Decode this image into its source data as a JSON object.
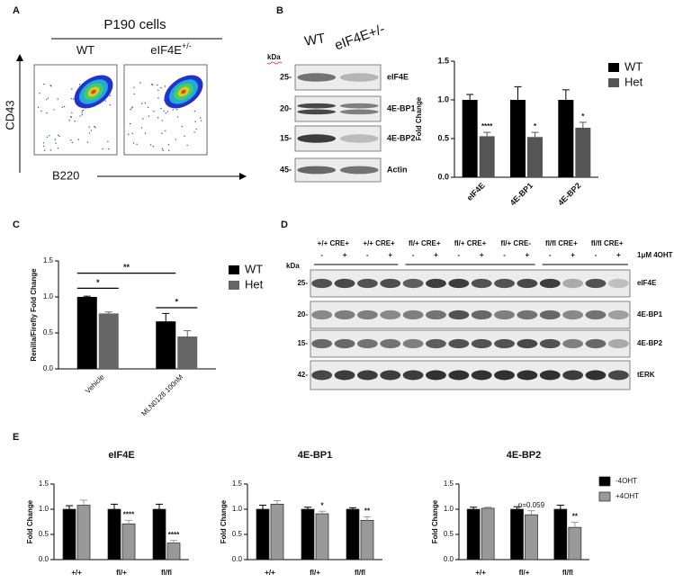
{
  "panel_labels": [
    "A",
    "B",
    "C",
    "D",
    "E"
  ],
  "flow": {
    "title": "P190 cells",
    "groups": [
      {
        "label": "WT"
      },
      {
        "label": "eIF4E",
        "sup": "+/-"
      }
    ],
    "y_axis_label": "CD43",
    "x_axis_label": "B220"
  },
  "blot_b": {
    "columns": [
      "WT",
      "eIF4E+/-"
    ],
    "kda": "kDa",
    "markers": [
      "25-",
      "20-",
      "15-",
      "45-"
    ],
    "bands": [
      "eIF4E",
      "4E-BP1",
      "4E-BP2",
      "Actin"
    ]
  },
  "blot_d": {
    "groups": [
      "+/+ CRE+",
      "+/+ CRE+",
      "fl/+ CRE+",
      "fl/+ CRE+",
      "fl/+ CRE-",
      "fl/fl CRE+",
      "fl/fl CRE+"
    ],
    "signs": [
      "-",
      "+",
      "-",
      "+",
      "-",
      "+",
      "-",
      "+",
      "-",
      "+",
      "-",
      "+",
      "-",
      "+"
    ],
    "treatment": "1μM 4OHT",
    "kda": "kDa",
    "markers": [
      "25-",
      "20-",
      "15-",
      "42-"
    ],
    "bands": [
      "eIF4E",
      "4E-BP1",
      "4E-BP2",
      "tERK"
    ]
  },
  "chart_data": [
    {
      "type": "bar",
      "y_axis_label": "Fold Change",
      "categories": [
        "eIF4E",
        "4E-BP1",
        "4E-BP2"
      ],
      "series": [
        {
          "name": "WT",
          "color": "#000000",
          "values": [
            1.0,
            1.0,
            1.0
          ],
          "errors": [
            0.07,
            0.17,
            0.13
          ]
        },
        {
          "name": "Het",
          "color": "#555555",
          "values": [
            0.53,
            0.52,
            0.64
          ],
          "errors": [
            0.05,
            0.06,
            0.07
          ]
        }
      ],
      "annotations": [
        "****",
        "*",
        "*"
      ],
      "ylim": [
        0,
        1.5
      ],
      "yticks": [
        {
          "value": 0,
          "label": "0.0"
        },
        {
          "value": 0.5,
          "label": "0.5"
        },
        {
          "value": 1,
          "label": "1.0"
        },
        {
          "value": 1.5,
          "label": "1.5"
        }
      ],
      "legend": "right"
    },
    {
      "type": "bar",
      "y_axis_label": "Renilla/Firefly Fold Change",
      "categories": [
        "Vehicle",
        "MLN0128 100nM"
      ],
      "series": [
        {
          "name": "WT",
          "color": "#000000",
          "values": [
            1.0,
            0.66
          ],
          "errors": [
            0.01,
            0.11
          ]
        },
        {
          "name": "Het",
          "color": "#666666",
          "values": [
            0.77,
            0.45
          ],
          "errors": [
            0.02,
            0.08
          ]
        }
      ],
      "significance": [
        "**",
        "*",
        "*"
      ],
      "ylim": [
        0,
        1.5
      ],
      "yticks": [
        {
          "value": 0,
          "label": "0.0"
        },
        {
          "value": 0.5,
          "label": "0.5"
        },
        {
          "value": 1,
          "label": "1.0"
        },
        {
          "value": 1.5,
          "label": "1.5"
        }
      ],
      "legend": "right"
    },
    {
      "type": "bar",
      "title": "eIF4E",
      "y_axis_label": "Fold Change",
      "categories": [
        "+/+",
        "fl/+",
        "fl/fl"
      ],
      "series": [
        {
          "color": "#000000",
          "values": [
            1.0,
            1.0,
            1.0
          ],
          "errors": [
            0.07,
            0.1,
            0.1
          ]
        },
        {
          "color": "#999999",
          "values": [
            1.08,
            0.71,
            0.33
          ],
          "errors": [
            0.1,
            0.07,
            0.05
          ]
        }
      ],
      "annotations": [
        null,
        "****",
        "****"
      ],
      "ylim": [
        0,
        1.5
      ],
      "yticks": [
        {
          "value": 0,
          "label": "0.0"
        },
        {
          "value": 0.5,
          "label": "0.5"
        },
        {
          "value": 1,
          "label": "1.0"
        },
        {
          "value": 1.5,
          "label": "1.5"
        }
      ]
    },
    {
      "type": "bar",
      "title": "4E-BP1",
      "y_axis_label": "Fold Change",
      "categories": [
        "+/+",
        "fl/+",
        "fl/fl"
      ],
      "series": [
        {
          "color": "#000000",
          "values": [
            1.0,
            1.0,
            1.0
          ],
          "errors": [
            0.08,
            0.04,
            0.03
          ]
        },
        {
          "color": "#999999",
          "values": [
            1.1,
            0.91,
            0.78
          ],
          "errors": [
            0.07,
            0.05,
            0.07
          ]
        }
      ],
      "annotations": [
        null,
        "*",
        "**"
      ],
      "ylim": [
        0,
        1.5
      ],
      "yticks": [
        {
          "value": 0,
          "label": "0.0"
        },
        {
          "value": 0.5,
          "label": "0.5"
        },
        {
          "value": 1,
          "label": "1.0"
        },
        {
          "value": 1.5,
          "label": "1.5"
        }
      ]
    },
    {
      "type": "bar",
      "title": "4E-BP2",
      "y_axis_label": "Fold Change",
      "categories": [
        "+/+",
        "fl/+",
        "fl/fl"
      ],
      "series": [
        {
          "name": "-4OHT",
          "color": "#000000",
          "values": [
            1.0,
            1.0,
            1.0
          ],
          "errors": [
            0.04,
            0.05,
            0.08
          ]
        },
        {
          "name": "+4OHT",
          "color": "#999999",
          "values": [
            1.02,
            0.89,
            0.64
          ],
          "errors": [
            0.02,
            0.08,
            0.1
          ]
        }
      ],
      "annotations": [
        null,
        "p=0.059",
        "**"
      ],
      "ylim": [
        0,
        1.5
      ],
      "yticks": [
        {
          "value": 0,
          "label": "0.0"
        },
        {
          "value": 0.5,
          "label": "0.5"
        },
        {
          "value": 1,
          "label": "1.0"
        },
        {
          "value": 1.5,
          "label": "1.5"
        }
      ],
      "legend": "right"
    }
  ]
}
